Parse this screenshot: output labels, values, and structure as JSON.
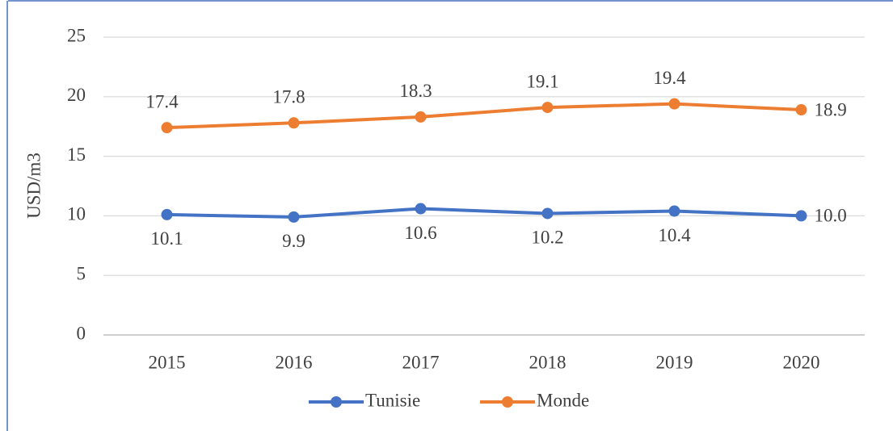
{
  "chart_data": {
    "type": "line",
    "y_label": "USD/m3",
    "categories": [
      "2015",
      "2016",
      "2017",
      "2018",
      "2019",
      "2020"
    ],
    "series": [
      {
        "name": "Tunisie",
        "color": "#4472c4",
        "values": [
          10.1,
          9.9,
          10.6,
          10.2,
          10.4,
          10
        ],
        "value_labels": [
          "10.1",
          "9.9",
          "10.6",
          "10.2",
          "10.4",
          "10.0"
        ]
      },
      {
        "name": "Monde",
        "color": "#ed7d31",
        "values": [
          17.4,
          17.8,
          18.3,
          19.1,
          19.4,
          18.9
        ],
        "value_labels": [
          "17.4",
          "17.8",
          "18.3",
          "19.1",
          "19.4",
          "18.9"
        ]
      }
    ],
    "ylim": [
      0,
      25
    ],
    "yticks": [
      0,
      5,
      10,
      15,
      20,
      25
    ],
    "grid": true,
    "legend": "bottom"
  }
}
